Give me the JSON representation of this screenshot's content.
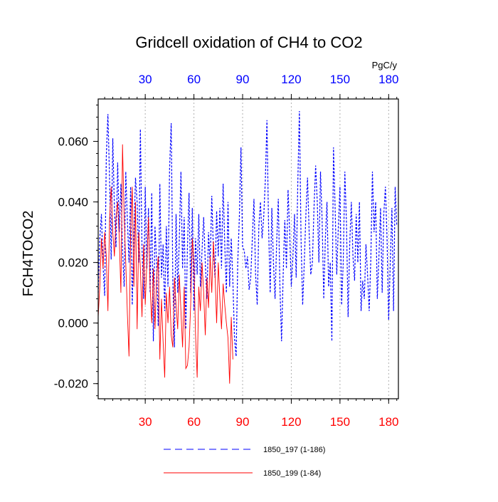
{
  "chart_data": {
    "type": "line",
    "title": "Gridcell oxidation of CH4 to CO2",
    "ylabel": "FCH4TOCO2",
    "xlabel": "",
    "top_axis_units": "PgC/y",
    "xlim": [
      1,
      186
    ],
    "ylim": [
      -0.025,
      0.074
    ],
    "x_ticks": [
      30,
      60,
      90,
      120,
      150,
      180
    ],
    "y_ticks": [
      -0.02,
      0.0,
      0.02,
      0.04,
      0.06
    ],
    "y_tick_labels": [
      "-0.020",
      "0.000",
      "0.020",
      "0.040",
      "0.060"
    ],
    "grid": "vertical dashed at x ticks",
    "colors": {
      "bottom_axis": "#ff0000",
      "top_axis": "#0000ff",
      "series1": "#0000ff",
      "series2": "#ff0000",
      "grid": "#b0b0b0",
      "axis": "#000000"
    },
    "series": [
      {
        "name": "1850_197 (1-186)",
        "style": "dashed",
        "color": "#0000ff",
        "start_x": 1,
        "values": [
          0.01,
          0.028,
          0.036,
          0.019,
          0.009,
          0.055,
          0.069,
          0.048,
          0.021,
          0.061,
          0.038,
          0.025,
          0.053,
          0.03,
          0.046,
          0.024,
          0.012,
          0.05,
          0.034,
          0.02,
          0.045,
          0.006,
          0.029,
          0.048,
          0.04,
          0.02,
          0.064,
          0.025,
          0.008,
          0.045,
          0.018,
          0.038,
          0.01,
          0.043,
          -0.006,
          0.032,
          0.02,
          -0.001,
          0.046,
          0.015,
          0.026,
          0.004,
          0.032,
          0.012,
          0.051,
          0.066,
          0.014,
          -0.008,
          0.036,
          0.01,
          0.028,
          0.05,
          0.018,
          0.035,
          -0.002,
          0.025,
          0.043,
          0.01,
          0.038,
          0.004,
          0.028,
          0.016,
          0.036,
          0.012,
          0.024,
          0.035,
          0.02,
          0.008,
          0.03,
          0.019,
          0.042,
          0.024,
          0.015,
          0.037,
          0.022,
          0.038,
          0.018,
          0.046,
          0.026,
          0.01,
          0.04,
          0.012,
          0.028,
          0.014,
          -0.005,
          -0.011,
          0.02,
          0.035,
          0.058,
          0.025,
          0.024,
          0.018,
          0.022,
          0.011,
          0.015,
          0.028,
          0.041,
          0.016,
          0.006,
          0.032,
          0.04,
          0.028,
          0.035,
          0.047,
          0.067,
          0.032,
          0.01,
          0.038,
          0.02,
          0.008,
          0.027,
          0.041,
          0.012,
          -0.006,
          0.016,
          0.034,
          0.018,
          0.044,
          0.03,
          0.012,
          0.022,
          0.036,
          0.015,
          0.046,
          0.07,
          0.028,
          0.006,
          0.02,
          0.036,
          0.048,
          0.03,
          0.016,
          0.02,
          0.038,
          0.052,
          0.04,
          0.02,
          0.05,
          0.034,
          0.008,
          0.028,
          0.04,
          0.012,
          0.02,
          -0.006,
          0.058,
          0.038,
          0.016,
          0.032,
          0.045,
          0.006,
          0.02,
          0.05,
          0.033,
          0.002,
          0.026,
          0.04,
          0.022,
          0.014,
          0.036,
          0.02,
          0.04,
          0.004,
          0.014,
          0.008,
          0.026,
          0.016,
          0.004,
          0.021,
          0.05,
          0.03,
          0.04,
          0.008,
          0.022,
          0.038,
          0.01,
          0.036,
          0.045,
          0.028,
          0.001,
          0.02,
          0.038,
          0.004,
          0.045,
          0.032
        ]
      },
      {
        "name": "1850_199 (1-84)",
        "style": "solid",
        "color": "#ff0000",
        "start_x": 1,
        "values": [
          0.002,
          0.012,
          0.028,
          0.018,
          0.03,
          0.022,
          0.004,
          0.034,
          0.045,
          0.03,
          0.022,
          0.035,
          0.04,
          0.028,
          0.01,
          0.059,
          0.035,
          0.02,
          0.003,
          -0.011,
          0.03,
          0.045,
          0.012,
          0.04,
          -0.002,
          0.03,
          0.018,
          0.002,
          0.026,
          0.006,
          0.02,
          0.035,
          0.012,
          0.0,
          0.018,
          -0.002,
          0.015,
          0.022,
          -0.012,
          0.008,
          -0.006,
          -0.018,
          0.01,
          0.0,
          0.012,
          -0.004,
          -0.008,
          0.015,
          0.006,
          -0.002,
          0.016,
          0.004,
          -0.008,
          0.012,
          -0.015,
          -0.014,
          -0.008,
          0.006,
          0.028,
          0.02,
          -0.004,
          -0.018,
          0.012,
          0.004,
          0.02,
          0.01,
          -0.004,
          0.015,
          0.005,
          0.022,
          0.01,
          0.027,
          0.016,
          0.0,
          0.02,
          0.008,
          -0.002,
          0.013,
          0.006,
          0.0,
          -0.005,
          -0.02,
          0.002,
          -0.012
        ]
      }
    ]
  }
}
